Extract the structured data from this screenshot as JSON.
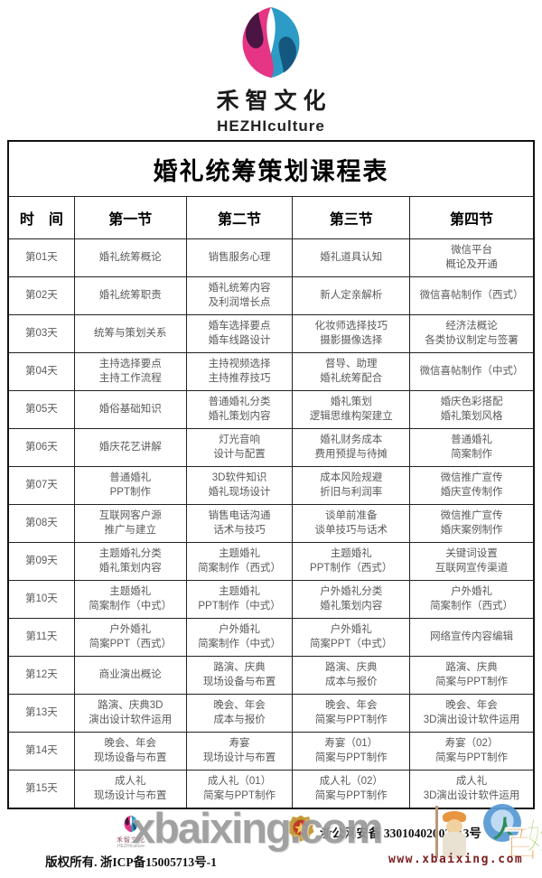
{
  "brand": {
    "name_cn": "禾智文化",
    "name_en": "HEZHIculture"
  },
  "colors": {
    "logo_pink": "#E53584",
    "logo_dark_purple": "#4A1542",
    "logo_blue": "#2C9CC7",
    "logo_dark_blue": "#14587F",
    "table_border": "#111111",
    "cell_text": "#5a5a5a",
    "watermark_gray": "#9a9a9a",
    "watermark_url_red": "#7c1f1f"
  },
  "table": {
    "title": "婚礼统筹策划课程表",
    "headers": [
      "时　间",
      "第一节",
      "第二节",
      "第三节",
      "第四节"
    ],
    "rows": [
      {
        "day": "第01天",
        "cells": [
          "婚礼统筹概论",
          "销售服务心理",
          "婚礼道具认知",
          "微信平台\n概论及开通"
        ]
      },
      {
        "day": "第02天",
        "cells": [
          "婚礼统筹职责",
          "婚礼统筹内容\n及利润增长点",
          "新人定亲解析",
          "微信喜帖制作（西式）"
        ]
      },
      {
        "day": "第03天",
        "cells": [
          "统筹与策划关系",
          "婚车选择要点\n婚车线路设计",
          "化妆师选择技巧\n摄影摄像选择",
          "经济法概论\n各类协议制定与签署"
        ]
      },
      {
        "day": "第04天",
        "cells": [
          "主持选择要点\n主持工作流程",
          "主持视频选择\n主持推荐技巧",
          "督导、助理\n婚礼统筹配合",
          "微信喜帖制作（中式）"
        ]
      },
      {
        "day": "第05天",
        "cells": [
          "婚俗基础知识",
          "普通婚礼分类\n婚礼策划内容",
          "婚礼策划\n逻辑思维构架建立",
          "婚庆色彩搭配\n婚礼策划风格"
        ]
      },
      {
        "day": "第06天",
        "cells": [
          "婚庆花艺讲解",
          "灯光音响\n设计与配置",
          "婚礼财务成本\n费用预提与待摊",
          "普通婚礼\n简案制作"
        ]
      },
      {
        "day": "第07天",
        "cells": [
          "普通婚礼\nPPT制作",
          "3D软件知识\n婚礼现场设计",
          "成本风险规避\n折旧与利润率",
          "微信推广宣传\n婚庆宣传制作"
        ]
      },
      {
        "day": "第08天",
        "cells": [
          "互联网客户源\n推广与建立",
          "销售电话沟通\n话术与技巧",
          "谈单前准备\n谈单技巧与话术",
          "微信推广宣传\n婚庆案例制作"
        ]
      },
      {
        "day": "第09天",
        "cells": [
          "主题婚礼分类\n婚礼策划内容",
          "主题婚礼\n简案制作（西式）",
          "主题婚礼\nPPT制作（西式）",
          "关键词设置\n互联网宣传渠道"
        ]
      },
      {
        "day": "第10天",
        "cells": [
          "主题婚礼\n简案制作（中式）",
          "主题婚礼\nPPT制作（中式）",
          "户外婚礼分类\n婚礼策划内容",
          "户外婚礼\n简案制作（西式）"
        ]
      },
      {
        "day": "第11天",
        "cells": [
          "户外婚礼\n简案PPT（西式）",
          "户外婚礼\n简案制作（中式）",
          "户外婚礼\n简案PPT（中式）",
          "网络宣传内容编辑"
        ]
      },
      {
        "day": "第12天",
        "cells": [
          "商业演出概论",
          "路演、庆典\n现场设备与布置",
          "路演、庆典\n成本与报价",
          "路演、庆典\n简案与PPT制作"
        ]
      },
      {
        "day": "第13天",
        "cells": [
          "路演、庆典3D\n演出设计软件运用",
          "晚会、年会\n成本与报价",
          "晚会、年会\n简案与PPT制作",
          "晚会、年会\n3D演出设计软件运用"
        ]
      },
      {
        "day": "第14天",
        "cells": [
          "晚会、年会\n现场设备与布置",
          "寿宴\n现场设计与布置",
          "寿宴（01）\n简案与PPT制作",
          "寿宴（02）\n简案与PPT制作"
        ]
      },
      {
        "day": "第15天",
        "cells": [
          "成人礼\n现场设计与布置",
          "成人礼（01）\n简案与PPT制作",
          "成人礼（02）\n简案与PPT制作",
          "成人礼\n3D演出设计软件运用"
        ]
      }
    ]
  },
  "footer": {
    "copyright": "版权所有. 浙ICP备15005713号-1",
    "security": "浙公网安备 33010402002313号",
    "mini_brand_cn": "禾智文化",
    "mini_brand_en": "HEZHIculture"
  },
  "watermark": {
    "text": "xbaixing.com",
    "url": "www.xbaixing.com",
    "char_bai": "百",
    "char_xing": "姓",
    "person_glyph": "人"
  }
}
